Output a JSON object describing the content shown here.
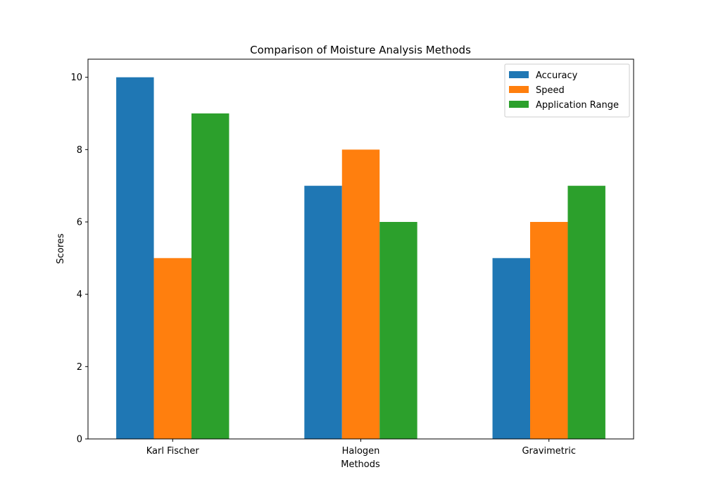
{
  "chart_data": {
    "type": "bar",
    "title": "Comparison of Moisture Analysis Methods",
    "xlabel": "Methods",
    "ylabel": "Scores",
    "categories": [
      "Karl Fischer",
      "Halogen",
      "Gravimetric"
    ],
    "series": [
      {
        "name": "Accuracy",
        "values": [
          10,
          7,
          5
        ],
        "color": "#1f77b4"
      },
      {
        "name": "Speed",
        "values": [
          5,
          8,
          6
        ],
        "color": "#ff7f0e"
      },
      {
        "name": "Application Range",
        "values": [
          9,
          6,
          7
        ],
        "color": "#2ca02c"
      }
    ],
    "ylim": [
      0,
      10.5
    ],
    "yticks": [
      0,
      2,
      4,
      6,
      8,
      10
    ],
    "grid": false,
    "legend_position": "top-right"
  }
}
